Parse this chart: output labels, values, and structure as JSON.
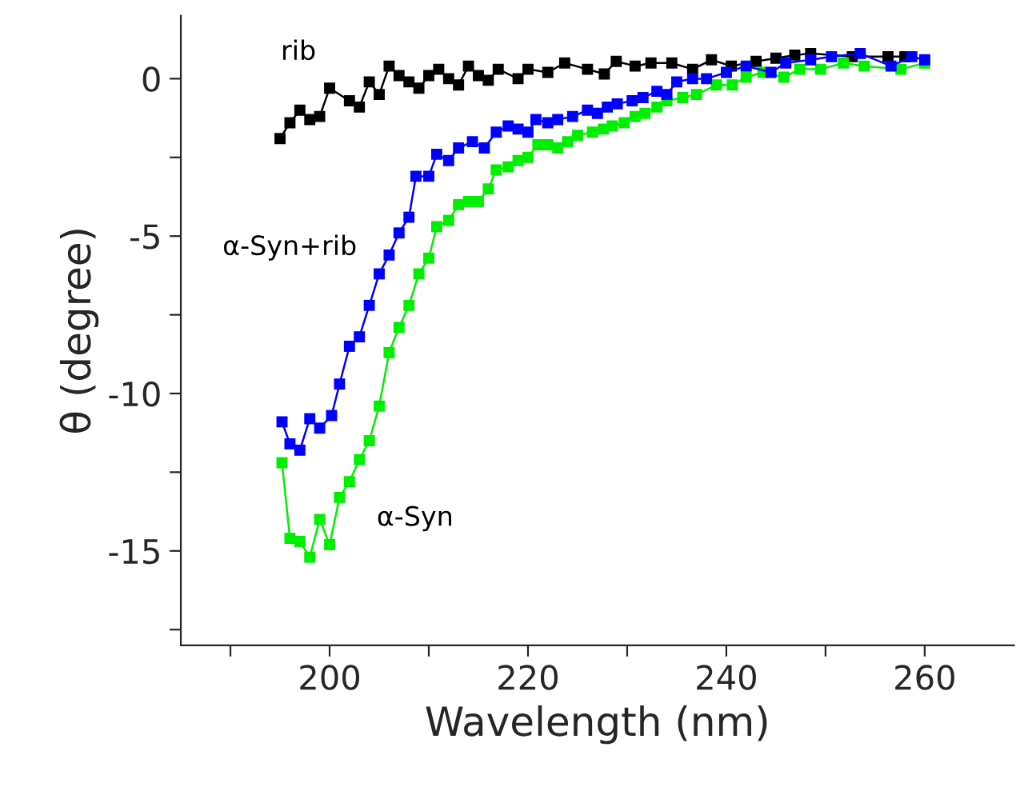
{
  "chart_data": {
    "type": "line",
    "xlabel": "Wavelength (nm)",
    "ylabel": "θ (degree)",
    "marker": "square",
    "line_style": "solid",
    "grid": false,
    "legend": false,
    "xlim": [
      185,
      269
    ],
    "ylim": [
      -18,
      2
    ],
    "xticks": [
      {
        "value": 190,
        "label": null
      },
      200,
      {
        "value": 210,
        "label": null
      },
      220,
      {
        "value": 230,
        "label": null
      },
      240,
      {
        "value": 250,
        "label": null
      },
      260
    ],
    "yticks": [
      {
        "value": -17.5,
        "label": null
      },
      -15,
      {
        "value": -12.5,
        "label": null
      },
      -10,
      {
        "value": -7.5,
        "label": null
      },
      -5,
      {
        "value": -2.5,
        "label": null
      },
      0
    ],
    "series": [
      {
        "name": "rib",
        "color": "#000000",
        "x": [
          195,
          196,
          197,
          198,
          199,
          200,
          202,
          203,
          204,
          205,
          206,
          207,
          208,
          209,
          210,
          211,
          212,
          213,
          214,
          215,
          216,
          217,
          219,
          220,
          222,
          223.7,
          226,
          227.7,
          228.9,
          230.8,
          232.4,
          234.5,
          236.6,
          238.5,
          240.5,
          243,
          245,
          246.9,
          248.5,
          250.6,
          252.7,
          256.3,
          258
        ],
        "values": [
          -1.9,
          -1.4,
          -1.0,
          -1.3,
          -1.2,
          -0.3,
          -0.7,
          -0.9,
          -0.1,
          -0.5,
          0.4,
          0.1,
          -0.1,
          -0.3,
          0.1,
          0.3,
          0.0,
          -0.2,
          0.4,
          0.1,
          -0.05,
          0.3,
          0,
          0.3,
          0.2,
          0.5,
          0.3,
          0.15,
          0.55,
          0.4,
          0.5,
          0.5,
          0.3,
          0.6,
          0.4,
          0.55,
          0.65,
          0.75,
          0.8,
          null,
          0.7,
          0.7,
          0.7
        ]
      },
      {
        "name": "α-Syn+rib",
        "color": "#0000ff",
        "x": [
          195.2,
          196,
          197,
          198,
          199,
          200.2,
          201,
          202,
          203,
          204,
          205,
          206,
          207,
          208,
          208.7,
          210,
          210.8,
          212,
          213,
          214.4,
          215.6,
          216.8,
          218,
          219,
          220,
          220.8,
          222,
          223,
          224.5,
          226,
          227,
          228,
          229,
          230.5,
          231.6,
          233,
          234,
          235,
          236.6,
          238,
          240,
          242,
          244.5,
          246,
          248.5,
          250.6,
          253.5,
          256.6,
          258.7,
          260
        ],
        "values": [
          -10.9,
          -11.6,
          -11.8,
          -10.8,
          -11.1,
          -10.7,
          -9.7,
          -8.5,
          -8.2,
          -7.2,
          -6.2,
          -5.6,
          -4.9,
          -4.4,
          -3.1,
          -3.1,
          -2.4,
          -2.6,
          -2.2,
          -2.0,
          -2.2,
          -1.7,
          -1.5,
          -1.6,
          -1.7,
          -1.3,
          -1.4,
          -1.3,
          -1.2,
          -1.0,
          -1.1,
          -0.9,
          -0.8,
          -0.7,
          -0.6,
          -0.4,
          -0.5,
          -0.1,
          0,
          0,
          0.2,
          0.4,
          0.2,
          0.5,
          0.6,
          0.7,
          0.8,
          0.4,
          0.7,
          0.6
        ]
      },
      {
        "name": "α-Syn",
        "color": "#00ee00",
        "x": [
          195.2,
          196,
          197,
          198,
          199,
          200,
          201,
          202,
          203,
          204,
          205,
          206,
          207,
          208,
          209,
          210,
          210.8,
          212,
          213,
          214,
          215,
          216,
          216.8,
          218,
          219,
          220,
          221,
          222,
          223,
          224,
          225,
          226.5,
          227.6,
          228.5,
          229.7,
          230.8,
          231.8,
          233,
          234,
          235.6,
          237,
          239,
          240.6,
          242,
          243.7,
          245.8,
          247.4,
          249.5,
          251.8,
          253.9,
          257.6,
          260
        ],
        "values": [
          -12.2,
          -14.6,
          -14.7,
          -15.2,
          -14.0,
          -14.8,
          -13.3,
          -12.8,
          -12.1,
          -11.5,
          -10.4,
          -8.7,
          -7.9,
          -7.2,
          -6.2,
          -5.7,
          -4.7,
          -4.5,
          -4.0,
          -3.9,
          -3.9,
          -3.5,
          -2.9,
          -2.8,
          -2.6,
          -2.5,
          -2.1,
          -2.1,
          -2.2,
          -2.0,
          -1.8,
          -1.7,
          -1.6,
          -1.5,
          -1.4,
          -1.2,
          -1.1,
          -0.9,
          -0.7,
          -0.6,
          -0.5,
          -0.2,
          -0.2,
          0.05,
          0.2,
          0.05,
          0.3,
          0.3,
          0.5,
          0.4,
          0.3,
          0.5
        ]
      }
    ]
  }
}
